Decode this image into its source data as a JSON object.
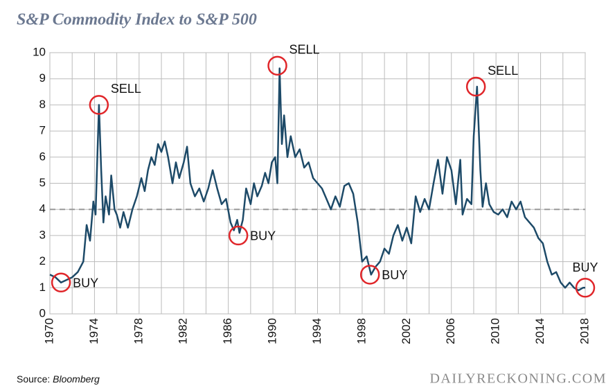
{
  "chart_data": {
    "type": "line",
    "title": "S&P Commodity Index to S&P 500",
    "source_label": "Source:",
    "source": "Bloomberg",
    "watermark": "DAILYRECKONING.COM",
    "x": [
      1970,
      1970.5,
      1971,
      1971.5,
      1972,
      1972.5,
      1973,
      1973.3,
      1973.6,
      1973.9,
      1974.1,
      1974.4,
      1974.6,
      1974.8,
      1975,
      1975.3,
      1975.5,
      1975.8,
      1976,
      1976.3,
      1976.6,
      1977,
      1977.4,
      1977.8,
      1978.2,
      1978.5,
      1978.8,
      1979.1,
      1979.4,
      1979.7,
      1980,
      1980.3,
      1980.6,
      1981,
      1981.3,
      1981.6,
      1982,
      1982.3,
      1982.6,
      1983,
      1983.4,
      1983.8,
      1984.2,
      1984.6,
      1985,
      1985.4,
      1985.8,
      1986.2,
      1986.5,
      1986.8,
      1987,
      1987.3,
      1987.6,
      1988,
      1988.3,
      1988.6,
      1989,
      1989.3,
      1989.6,
      1989.9,
      1990.2,
      1990.4,
      1990.6,
      1990.8,
      1991,
      1991.3,
      1991.6,
      1992,
      1992.4,
      1992.8,
      1993.2,
      1993.6,
      1994,
      1994.4,
      1994.8,
      1995.2,
      1995.6,
      1996,
      1996.4,
      1996.8,
      1997.2,
      1997.6,
      1998,
      1998.4,
      1998.8,
      1999.2,
      1999.6,
      2000,
      2000.4,
      2000.8,
      2001.2,
      2001.6,
      2002,
      2002.4,
      2002.8,
      2003.2,
      2003.6,
      2004,
      2004.4,
      2004.8,
      2005.2,
      2005.6,
      2006,
      2006.4,
      2006.8,
      2007,
      2007.4,
      2007.8,
      2008,
      2008.3,
      2008.6,
      2008.8,
      2009.1,
      2009.4,
      2009.8,
      2010.2,
      2010.6,
      2011,
      2011.4,
      2011.8,
      2012.2,
      2012.6,
      2013,
      2013.4,
      2013.8,
      2014.2,
      2014.6,
      2015,
      2015.4,
      2015.8,
      2016.2,
      2016.6,
      2017,
      2017.4,
      2017.8,
      2018
    ],
    "series": [
      {
        "name": "S&P Commodity Index to S&P 500",
        "color": "#1d4a68",
        "values": [
          1.5,
          1.4,
          1.2,
          1.3,
          1.4,
          1.6,
          2.0,
          3.4,
          2.8,
          4.3,
          3.8,
          8.0,
          5.5,
          3.5,
          4.5,
          3.8,
          5.3,
          4.0,
          3.8,
          3.3,
          3.9,
          3.3,
          4.0,
          4.5,
          5.2,
          4.7,
          5.5,
          6.0,
          5.7,
          6.5,
          6.2,
          6.6,
          6.0,
          5.0,
          5.8,
          5.2,
          5.8,
          6.4,
          5.0,
          4.5,
          4.8,
          4.3,
          4.8,
          5.5,
          4.8,
          4.2,
          4.4,
          3.5,
          3.2,
          3.6,
          3.1,
          3.6,
          4.8,
          4.2,
          5.0,
          4.5,
          4.9,
          5.4,
          5.0,
          5.8,
          6.0,
          5.0,
          9.4,
          6.5,
          7.6,
          6.0,
          6.8,
          6.0,
          6.3,
          5.6,
          5.8,
          5.2,
          5.0,
          4.8,
          4.4,
          4.0,
          4.5,
          4.1,
          4.9,
          5.0,
          4.6,
          3.5,
          2.0,
          2.2,
          1.5,
          1.8,
          2.0,
          2.5,
          2.3,
          3.0,
          3.4,
          2.8,
          3.3,
          2.7,
          4.5,
          3.9,
          4.4,
          4.0,
          5.0,
          5.9,
          4.6,
          6.0,
          5.5,
          4.2,
          5.9,
          3.8,
          4.4,
          4.2,
          6.8,
          8.7,
          5.5,
          4.1,
          5.0,
          4.2,
          3.9,
          3.8,
          4.0,
          3.7,
          4.3,
          4.0,
          4.3,
          3.7,
          3.5,
          3.3,
          2.9,
          2.7,
          2.0,
          1.5,
          1.6,
          1.2,
          1.0,
          1.2,
          1.0,
          0.9,
          1.0,
          1.0
        ]
      }
    ],
    "xlim": [
      1970,
      2018
    ],
    "xticks": [
      1970,
      1974,
      1978,
      1982,
      1986,
      1990,
      1994,
      1998,
      2002,
      2006,
      2010,
      2014,
      2018
    ],
    "x_minor_grid": [
      1972,
      1976,
      1980,
      1984,
      1988,
      1992,
      1996,
      2000,
      2004,
      2008,
      2012,
      2016
    ],
    "ylim": [
      0,
      10
    ],
    "yticks": [
      0,
      1,
      2,
      3,
      4,
      5,
      6,
      7,
      8,
      9,
      10
    ],
    "grid": true,
    "reference_line": 4,
    "annotations": [
      {
        "text": "BUY",
        "x": 1971,
        "y": 1.2
      },
      {
        "text": "SELL",
        "x": 1974.4,
        "y": 8.0
      },
      {
        "text": "BUY",
        "x": 1986.9,
        "y": 3.0
      },
      {
        "text": "SELL",
        "x": 1990.4,
        "y": 9.5
      },
      {
        "text": "BUY",
        "x": 1998.7,
        "y": 1.5
      },
      {
        "text": "SELL",
        "x": 2008.2,
        "y": 8.7
      },
      {
        "text": "BUY",
        "x": 2018,
        "y": 1.0
      }
    ]
  }
}
